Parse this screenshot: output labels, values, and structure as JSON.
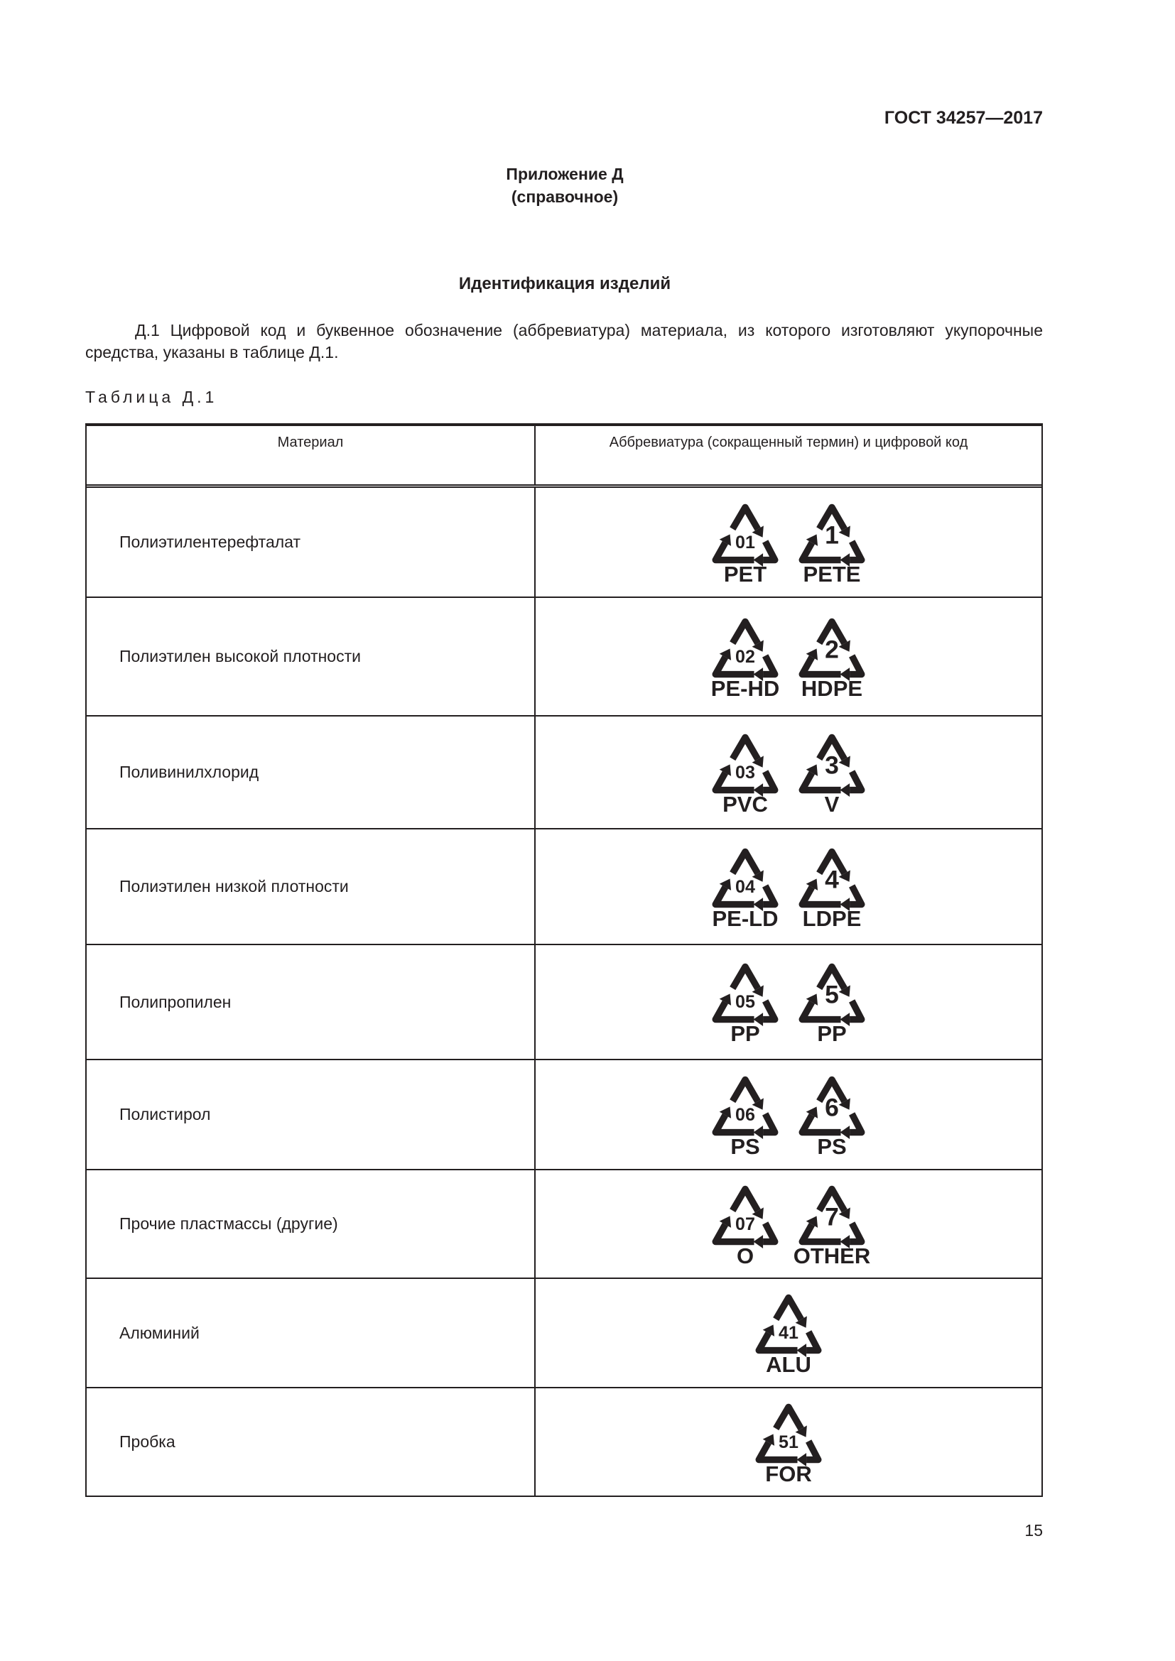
{
  "header": {
    "doc_code": "ГОСТ 34257—2017"
  },
  "appendix": {
    "title": "Приложение Д",
    "subtitle": "(справочное)"
  },
  "section_title": "Идентификация изделий",
  "paragraph": "Д.1 Цифровой код и буквенное обозначение (аббревиатура) материала, из которого изготовляют укупорочные средства, указаны в таблице Д.1.",
  "table": {
    "caption": "Таблица Д.1",
    "headers": [
      "Материал",
      "Аббревиатура (сокращенный термин) и цифровой код"
    ],
    "rows": [
      {
        "material": "Полиэтилентерефталат",
        "symbols": [
          {
            "code": "01",
            "label": "PET"
          },
          {
            "code": "1",
            "label": "PETE"
          }
        ]
      },
      {
        "material": "Полиэтилен высокой плотности",
        "symbols": [
          {
            "code": "02",
            "label": "PE-HD"
          },
          {
            "code": "2",
            "label": "HDPE"
          }
        ]
      },
      {
        "material": "Поливинилхлорид",
        "symbols": [
          {
            "code": "03",
            "label": "PVC"
          },
          {
            "code": "3",
            "label": "V"
          }
        ]
      },
      {
        "material": "Полиэтилен низкой плотности",
        "symbols": [
          {
            "code": "04",
            "label": "PE-LD"
          },
          {
            "code": "4",
            "label": "LDPE"
          }
        ]
      },
      {
        "material": "Полипропилен",
        "symbols": [
          {
            "code": "05",
            "label": "PP"
          },
          {
            "code": "5",
            "label": "PP"
          }
        ]
      },
      {
        "material": "Полистирол",
        "symbols": [
          {
            "code": "06",
            "label": "PS"
          },
          {
            "code": "6",
            "label": "PS"
          }
        ]
      },
      {
        "material": "Прочие пластмассы (другие)",
        "symbols": [
          {
            "code": "07",
            "label": "O"
          },
          {
            "code": "7",
            "label": "OTHER"
          }
        ]
      },
      {
        "material": "Алюминий",
        "symbols": [
          {
            "code": "41",
            "label": "ALU"
          }
        ]
      },
      {
        "material": "Пробка",
        "symbols": [
          {
            "code": "51",
            "label": "FOR"
          }
        ]
      }
    ]
  },
  "page_number": "15"
}
